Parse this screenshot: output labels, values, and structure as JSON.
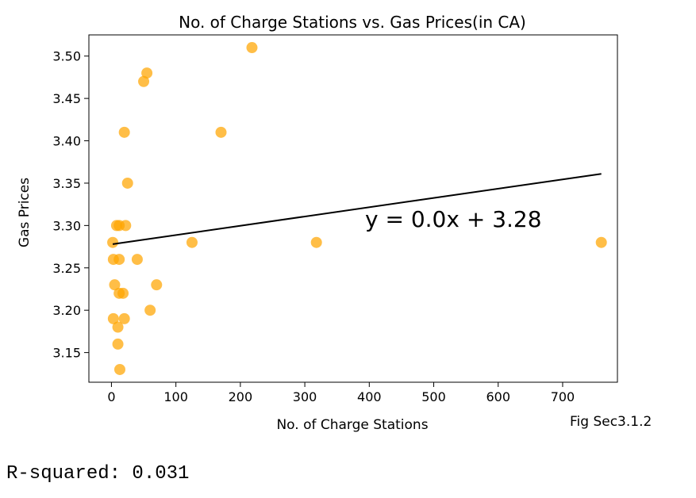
{
  "chart_data": {
    "type": "scatter",
    "title": "No. of Charge Stations vs. Gas Prices(in CA)",
    "xlabel": "No. of Charge Stations",
    "ylabel": "Gas Prices",
    "xlim": [
      -35,
      785
    ],
    "ylim": [
      3.115,
      3.525
    ],
    "xticks": [
      0,
      100,
      200,
      300,
      400,
      500,
      600,
      700
    ],
    "yticks": [
      3.15,
      3.2,
      3.25,
      3.3,
      3.35,
      3.4,
      3.45,
      3.5
    ],
    "ytick_labels": [
      "3.15",
      "3.20",
      "3.25",
      "3.30",
      "3.35",
      "3.40",
      "3.45",
      "3.50"
    ],
    "point_color": "#ffa500",
    "line_color": "#000000",
    "grid": false,
    "points": [
      {
        "x": 218,
        "y": 3.51
      },
      {
        "x": 55,
        "y": 3.48
      },
      {
        "x": 50,
        "y": 3.47
      },
      {
        "x": 20,
        "y": 3.41
      },
      {
        "x": 170,
        "y": 3.41
      },
      {
        "x": 25,
        "y": 3.35
      },
      {
        "x": 8,
        "y": 3.3
      },
      {
        "x": 12,
        "y": 3.3
      },
      {
        "x": 22,
        "y": 3.3
      },
      {
        "x": 2,
        "y": 3.28
      },
      {
        "x": 125,
        "y": 3.28
      },
      {
        "x": 318,
        "y": 3.28
      },
      {
        "x": 760,
        "y": 3.28
      },
      {
        "x": 3,
        "y": 3.26
      },
      {
        "x": 12,
        "y": 3.26
      },
      {
        "x": 40,
        "y": 3.26
      },
      {
        "x": 5,
        "y": 3.23
      },
      {
        "x": 70,
        "y": 3.23
      },
      {
        "x": 12,
        "y": 3.22
      },
      {
        "x": 18,
        "y": 3.22
      },
      {
        "x": 3,
        "y": 3.19
      },
      {
        "x": 20,
        "y": 3.19
      },
      {
        "x": 60,
        "y": 3.2
      },
      {
        "x": 10,
        "y": 3.18
      },
      {
        "x": 10,
        "y": 3.16
      },
      {
        "x": 13,
        "y": 3.13
      }
    ],
    "regression": {
      "x": [
        2,
        760
      ],
      "y": [
        3.278,
        3.361
      ]
    },
    "annotation": "y = 0.0x + 3.28",
    "figure_caption": "Fig Sec3.1.2"
  },
  "footer": {
    "r_squared_text": "R-squared: 0.031"
  }
}
